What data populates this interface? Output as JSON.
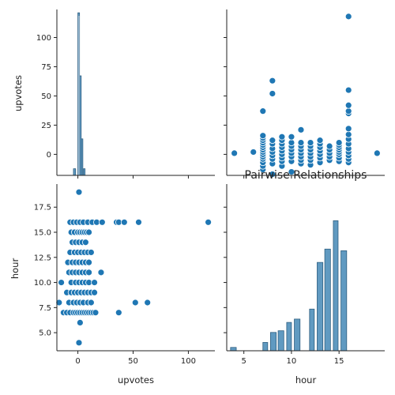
{
  "title": "Pairwise Relationships",
  "colors": {
    "point": "#1f77b4",
    "point_edge": "#ffffff",
    "bar": "#4f8fba",
    "bar_edge": "#2f5f80",
    "axis": "#222222"
  },
  "chart_data": [
    {
      "panel": "upvotes-diagonal",
      "type": "histogram",
      "variable": "upvotes",
      "xlim": [
        -19,
        124
      ],
      "ylim": [
        0,
        1
      ],
      "bins": [
        {
          "x0": -4,
          "x1": -2,
          "height": 0.04
        },
        {
          "x0": 0,
          "x1": 1.5,
          "height": 0.98
        },
        {
          "x0": 1.5,
          "x1": 3,
          "height": 0.6
        },
        {
          "x0": 3,
          "x1": 4.5,
          "height": 0.22
        },
        {
          "x0": 5,
          "x1": 6.5,
          "height": 0.04
        }
      ]
    },
    {
      "panel": "hour-vs-upvotes",
      "type": "scatter",
      "xlabel": "hour",
      "ylabel": "upvotes",
      "xlim": [
        3.2,
        19.8
      ],
      "ylim": [
        -18,
        124
      ],
      "x_ticks": [
        5,
        10,
        15
      ],
      "y_ticks": [
        0,
        25,
        50,
        75,
        100
      ],
      "points": [
        [
          4,
          1
        ],
        [
          6,
          2
        ],
        [
          7,
          -13
        ],
        [
          7,
          -10
        ],
        [
          7,
          -7
        ],
        [
          7,
          -4
        ],
        [
          7,
          -2
        ],
        [
          7,
          0
        ],
        [
          7,
          2
        ],
        [
          7,
          4
        ],
        [
          7,
          6
        ],
        [
          7,
          8
        ],
        [
          7,
          10
        ],
        [
          7,
          12
        ],
        [
          7,
          14
        ],
        [
          7,
          16
        ],
        [
          7,
          37
        ],
        [
          8,
          -17
        ],
        [
          8,
          -8
        ],
        [
          8,
          -4
        ],
        [
          8,
          -1
        ],
        [
          8,
          2
        ],
        [
          8,
          5
        ],
        [
          8,
          9
        ],
        [
          8,
          12
        ],
        [
          8,
          52
        ],
        [
          8,
          63
        ],
        [
          9,
          -10
        ],
        [
          9,
          -6
        ],
        [
          9,
          -3
        ],
        [
          9,
          0
        ],
        [
          9,
          3
        ],
        [
          9,
          6
        ],
        [
          9,
          9
        ],
        [
          9,
          12
        ],
        [
          9,
          15
        ],
        [
          10,
          -15
        ],
        [
          10,
          -6
        ],
        [
          10,
          -2
        ],
        [
          10,
          1
        ],
        [
          10,
          4
        ],
        [
          10,
          7
        ],
        [
          10,
          10
        ],
        [
          10,
          15
        ],
        [
          11,
          -8
        ],
        [
          11,
          -5
        ],
        [
          11,
          -2
        ],
        [
          11,
          1
        ],
        [
          11,
          4
        ],
        [
          11,
          7
        ],
        [
          11,
          10
        ],
        [
          11,
          21
        ],
        [
          12,
          -9
        ],
        [
          12,
          -5
        ],
        [
          12,
          -2
        ],
        [
          12,
          1
        ],
        [
          12,
          4
        ],
        [
          12,
          7
        ],
        [
          12,
          10
        ],
        [
          13,
          -7
        ],
        [
          13,
          -3
        ],
        [
          13,
          0
        ],
        [
          13,
          3
        ],
        [
          13,
          6
        ],
        [
          13,
          9
        ],
        [
          13,
          12
        ],
        [
          14,
          -5
        ],
        [
          14,
          -2
        ],
        [
          14,
          1
        ],
        [
          14,
          4
        ],
        [
          14,
          7
        ],
        [
          15,
          -6
        ],
        [
          15,
          -3
        ],
        [
          15,
          0
        ],
        [
          15,
          2
        ],
        [
          15,
          4
        ],
        [
          15,
          6
        ],
        [
          15,
          8
        ],
        [
          15,
          10
        ],
        [
          16,
          -7
        ],
        [
          16,
          -4
        ],
        [
          16,
          -1
        ],
        [
          16,
          2
        ],
        [
          16,
          5
        ],
        [
          16,
          9
        ],
        [
          16,
          13
        ],
        [
          16,
          17
        ],
        [
          16,
          22
        ],
        [
          16,
          35
        ],
        [
          16,
          37
        ],
        [
          16,
          42
        ],
        [
          16,
          55
        ],
        [
          16,
          118
        ],
        [
          19,
          1
        ]
      ]
    },
    {
      "panel": "upvotes-vs-hour",
      "type": "scatter",
      "xlabel": "upvotes",
      "ylabel": "hour",
      "xlim": [
        -19,
        124
      ],
      "ylim": [
        3.2,
        19.8
      ],
      "x_ticks": [
        0,
        50,
        100
      ],
      "y_ticks": [
        5.0,
        7.5,
        10.0,
        12.5,
        15.0,
        17.5
      ],
      "points": [
        [
          1,
          4
        ],
        [
          2,
          6
        ],
        [
          -13,
          7
        ],
        [
          -10,
          7
        ],
        [
          -7,
          7
        ],
        [
          -4,
          7
        ],
        [
          -2,
          7
        ],
        [
          0,
          7
        ],
        [
          2,
          7
        ],
        [
          4,
          7
        ],
        [
          6,
          7
        ],
        [
          8,
          7
        ],
        [
          10,
          7
        ],
        [
          12,
          7
        ],
        [
          14,
          7
        ],
        [
          16,
          7
        ],
        [
          37,
          7
        ],
        [
          -17,
          8
        ],
        [
          -8,
          8
        ],
        [
          -4,
          8
        ],
        [
          -1,
          8
        ],
        [
          2,
          8
        ],
        [
          5,
          8
        ],
        [
          9,
          8
        ],
        [
          12,
          8
        ],
        [
          52,
          8
        ],
        [
          63,
          8
        ],
        [
          -10,
          9
        ],
        [
          -6,
          9
        ],
        [
          -3,
          9
        ],
        [
          0,
          9
        ],
        [
          3,
          9
        ],
        [
          6,
          9
        ],
        [
          9,
          9
        ],
        [
          12,
          9
        ],
        [
          15,
          9
        ],
        [
          -15,
          10
        ],
        [
          -6,
          10
        ],
        [
          -2,
          10
        ],
        [
          1,
          10
        ],
        [
          4,
          10
        ],
        [
          7,
          10
        ],
        [
          10,
          10
        ],
        [
          15,
          10
        ],
        [
          -8,
          11
        ],
        [
          -5,
          11
        ],
        [
          -2,
          11
        ],
        [
          1,
          11
        ],
        [
          4,
          11
        ],
        [
          7,
          11
        ],
        [
          10,
          11
        ],
        [
          21,
          11
        ],
        [
          -9,
          12
        ],
        [
          -5,
          12
        ],
        [
          -2,
          12
        ],
        [
          1,
          12
        ],
        [
          4,
          12
        ],
        [
          7,
          12
        ],
        [
          10,
          12
        ],
        [
          -7,
          13
        ],
        [
          -3,
          13
        ],
        [
          0,
          13
        ],
        [
          3,
          13
        ],
        [
          6,
          13
        ],
        [
          9,
          13
        ],
        [
          12,
          13
        ],
        [
          -5,
          14
        ],
        [
          -2,
          14
        ],
        [
          1,
          14
        ],
        [
          4,
          14
        ],
        [
          7,
          14
        ],
        [
          -6,
          15
        ],
        [
          -3,
          15
        ],
        [
          0,
          15
        ],
        [
          2,
          15
        ],
        [
          4,
          15
        ],
        [
          6,
          15
        ],
        [
          8,
          15
        ],
        [
          10,
          15
        ],
        [
          -7,
          16
        ],
        [
          -4,
          16
        ],
        [
          -1,
          16
        ],
        [
          2,
          16
        ],
        [
          5,
          16
        ],
        [
          9,
          16
        ],
        [
          13,
          16
        ],
        [
          17,
          16
        ],
        [
          22,
          16
        ],
        [
          35,
          16
        ],
        [
          37,
          16
        ],
        [
          42,
          16
        ],
        [
          55,
          16
        ],
        [
          118,
          16
        ],
        [
          1,
          19
        ]
      ]
    },
    {
      "panel": "hour-diagonal",
      "type": "histogram",
      "variable": "hour",
      "xlim": [
        3.2,
        19.8
      ],
      "ylim": [
        0,
        1
      ],
      "x_ticks": [
        5,
        10,
        15
      ],
      "bins": [
        {
          "x0": 3.6,
          "x1": 4.2,
          "height": 0.02
        },
        {
          "x0": 7.0,
          "x1": 7.5,
          "height": 0.05
        },
        {
          "x0": 7.8,
          "x1": 8.4,
          "height": 0.11
        },
        {
          "x0": 8.6,
          "x1": 9.2,
          "height": 0.12
        },
        {
          "x0": 9.5,
          "x1": 10.0,
          "height": 0.17
        },
        {
          "x0": 10.3,
          "x1": 10.9,
          "height": 0.19
        },
        {
          "x0": 11.9,
          "x1": 12.4,
          "height": 0.25
        },
        {
          "x0": 12.7,
          "x1": 13.3,
          "height": 0.53
        },
        {
          "x0": 13.5,
          "x1": 14.1,
          "height": 0.61
        },
        {
          "x0": 14.4,
          "x1": 14.9,
          "height": 0.78
        },
        {
          "x0": 15.2,
          "x1": 15.8,
          "height": 0.6
        }
      ]
    }
  ]
}
